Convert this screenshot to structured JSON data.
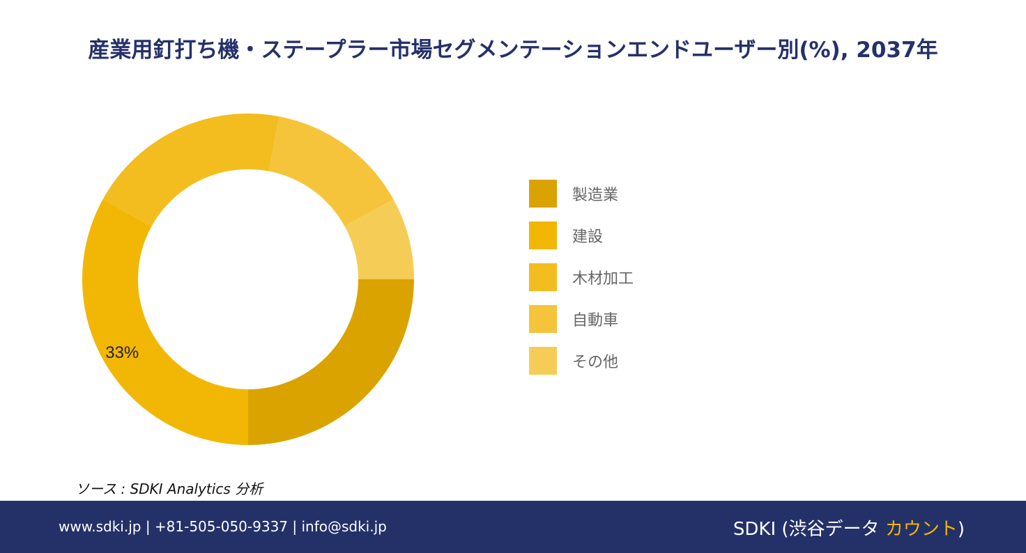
{
  "title": "産業用釘打ち機・ステープラー市場セグメンテーションエンドユーザー別(%), 2037年",
  "chart_data": {
    "type": "pie",
    "title": "産業用釘打ち機・ステープラー市場セグメンテーションエンドユーザー別(%), 2037年",
    "categories": [
      "製造業",
      "建設",
      "木材加工",
      "自動車",
      "その他"
    ],
    "values": [
      25,
      33,
      20,
      14,
      8
    ],
    "colors": [
      "#daa300",
      "#f2b705",
      "#f3bd1f",
      "#f5c43a",
      "#f5cd56"
    ],
    "data_labels": [
      "",
      "33%",
      "",
      "",
      ""
    ],
    "legend_position": "right"
  },
  "source": "ソース : SDKI Analytics 分析",
  "footer": {
    "contact": "www.sdki.jp | +81-505-050-9337 | info@sdki.jp",
    "brand_prefix": "SDKI (渋谷データ ",
    "brand_accent": "カウント",
    "brand_suffix": ")"
  }
}
